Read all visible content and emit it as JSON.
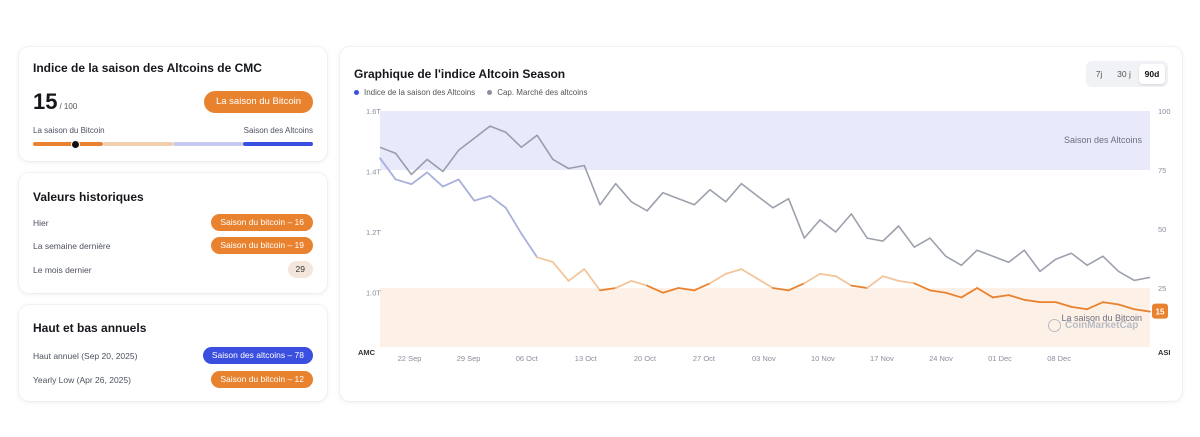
{
  "index_card": {
    "title": "Indice de la saison des Altcoins de CMC",
    "value": "15",
    "max": "/ 100",
    "status_badge": "La saison du Bitcoin",
    "left_label": "La saison du Bitcoin",
    "right_label": "Saison des Altcoins",
    "gauge_value": 15
  },
  "historical": {
    "title": "Valeurs historiques",
    "rows": [
      {
        "label": "Hier",
        "badge": "Saison du bitcoin – 16"
      },
      {
        "label": "La semaine dernière",
        "badge": "Saison du bitcoin – 19"
      },
      {
        "label": "Le mois dernier",
        "badge": "29"
      }
    ]
  },
  "annual": {
    "title": "Haut et bas annuels",
    "rows": [
      {
        "label": "Haut annuel (Sep 20, 2025)",
        "badge": "Saison des altcoins – 78"
      },
      {
        "label": "Yearly Low (Apr 26, 2025)",
        "badge": "Saison du bitcoin – 12"
      }
    ]
  },
  "chart_panel": {
    "title": "Graphique de l'indice Altcoin Season",
    "legend": [
      "Indice de la saison des Altcoins",
      "Cap. Marché des altcoins"
    ],
    "ranges": [
      "7j",
      "30 j",
      "90d"
    ],
    "active_range": "90d",
    "altseason_zone_label": "Saison des Altcoins",
    "bitcoin_zone_label": "La saison du Bitcoin",
    "watermark": "CoinMarketCap",
    "current_badge": "15",
    "left_axis_unit": "AMC",
    "right_axis_unit": "ASI"
  },
  "colors": {
    "orange": "#e9822f",
    "blue": "#3a4fe0",
    "index_line": "#a8b0dc",
    "cap_line": "#8a8f9e",
    "alt_zone": "#e8eafc",
    "btc_zone": "#fdf0e6"
  },
  "chart_data": {
    "type": "line",
    "x_ticks": [
      "22 Sep",
      "29 Sep",
      "06 Oct",
      "13 Oct",
      "20 Oct",
      "27 Oct",
      "03 Nov",
      "10 Nov",
      "17 Nov",
      "24 Nov",
      "01 Dec",
      "08 Dec"
    ],
    "y_left_ticks": [
      "1.0T",
      "1.2T",
      "1.4T",
      "1.6T"
    ],
    "y_right_ticks": [
      "25",
      "50",
      "75",
      "100"
    ],
    "ylim_left": [
      0.82,
      1.6
    ],
    "ylim_right": [
      0,
      100
    ],
    "zones": [
      {
        "name": "Saison des Altcoins",
        "from": 75,
        "to": 100
      },
      {
        "name": "La saison du Bitcoin",
        "from": 0,
        "to": 25
      }
    ],
    "series": [
      {
        "name": "Indice de la saison des Altcoins",
        "axis": "right",
        "values": [
          80,
          71,
          69,
          74,
          68,
          71,
          62,
          64,
          59,
          48,
          38,
          36,
          28,
          33,
          24,
          25,
          28,
          26,
          23,
          25,
          24,
          27,
          31,
          33,
          29,
          25,
          24,
          27,
          31,
          30,
          26,
          25,
          30,
          28,
          27,
          24,
          23,
          21,
          25,
          21,
          22,
          20,
          19,
          19,
          17,
          16,
          19,
          18,
          16,
          15
        ]
      },
      {
        "name": "Cap. Marché des altcoins",
        "axis": "left",
        "values": [
          1.48,
          1.46,
          1.39,
          1.44,
          1.4,
          1.47,
          1.51,
          1.55,
          1.53,
          1.48,
          1.52,
          1.44,
          1.41,
          1.42,
          1.29,
          1.36,
          1.3,
          1.27,
          1.33,
          1.31,
          1.29,
          1.34,
          1.3,
          1.36,
          1.32,
          1.28,
          1.31,
          1.18,
          1.24,
          1.2,
          1.26,
          1.18,
          1.17,
          1.22,
          1.15,
          1.18,
          1.12,
          1.09,
          1.14,
          1.12,
          1.1,
          1.14,
          1.07,
          1.11,
          1.13,
          1.09,
          1.12,
          1.07,
          1.04,
          1.05
        ]
      }
    ]
  }
}
